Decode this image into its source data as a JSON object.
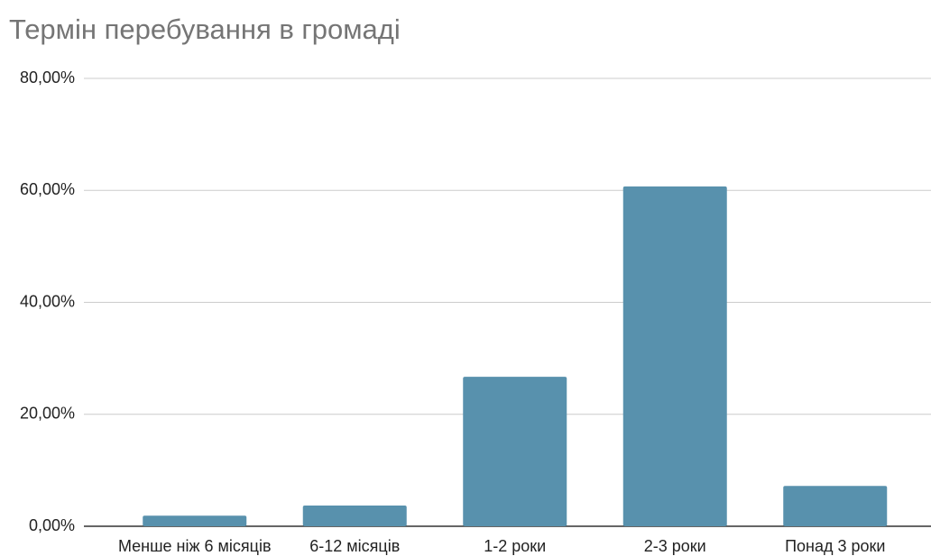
{
  "chart_data": {
    "type": "bar",
    "title": "Термін перебування в громаді",
    "categories": [
      "Менше ніж 6 місяців",
      "6-12 місяців",
      "1-2 роки",
      "2-3 роки",
      "Понад 3 роки"
    ],
    "values": [
      1.9,
      3.7,
      26.7,
      60.7,
      7.2
    ],
    "color": "#5891ad",
    "ylim": [
      0,
      80
    ],
    "yticks": [
      {
        "value": 0,
        "label": "0,00%"
      },
      {
        "value": 20,
        "label": "20,00%"
      },
      {
        "value": 40,
        "label": "40,00%"
      },
      {
        "value": 60,
        "label": "60,00%"
      },
      {
        "value": 80,
        "label": "80,00%"
      }
    ],
    "grid": true
  }
}
